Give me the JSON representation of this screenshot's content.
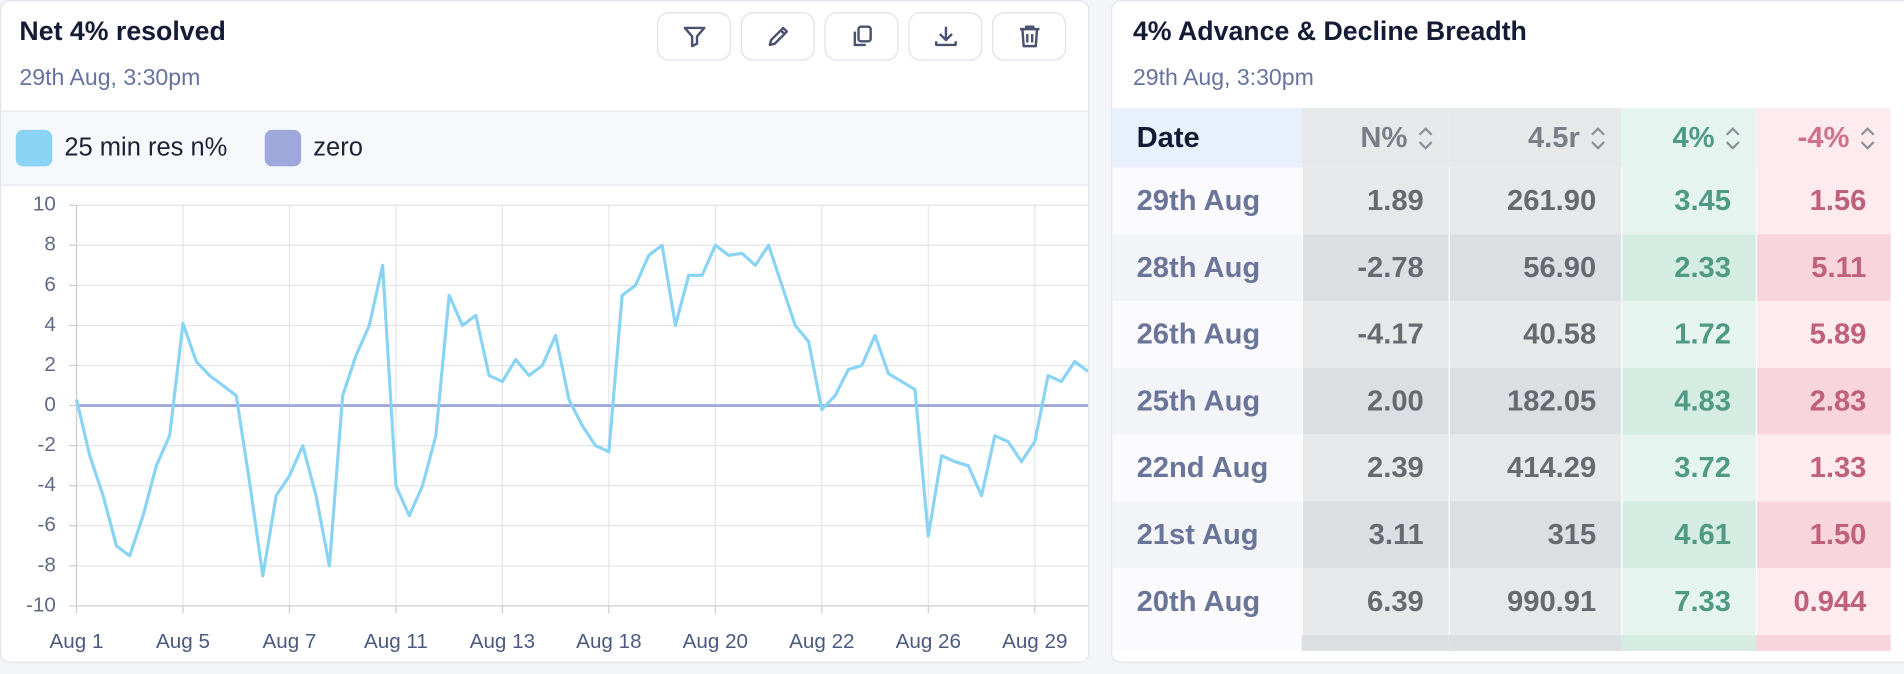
{
  "chart_data": {
    "type": "line",
    "title": "Net 4% resolved",
    "subtitle": "29th Aug, 3:30pm",
    "categories": [
      "Aug 1",
      null,
      null,
      null,
      null,
      null,
      null,
      null,
      "Aug 5",
      null,
      null,
      null,
      null,
      null,
      null,
      null,
      "Aug 7",
      null,
      null,
      null,
      null,
      null,
      null,
      null,
      "Aug 11",
      null,
      null,
      null,
      null,
      null,
      null,
      null,
      "Aug 13",
      null,
      null,
      null,
      null,
      null,
      null,
      null,
      "Aug 18",
      null,
      null,
      null,
      null,
      null,
      null,
      null,
      "Aug 20",
      null,
      null,
      null,
      null,
      null,
      null,
      null,
      "Aug 22",
      null,
      null,
      null,
      null,
      null,
      null,
      null,
      "Aug 26",
      null,
      null,
      null,
      null,
      null,
      null,
      null,
      "Aug 29",
      null,
      null,
      null,
      null
    ],
    "series": [
      {
        "name": "25 min res n%",
        "color": "#89d4f5",
        "values": [
          0.3,
          -2.5,
          -4.5,
          -7,
          -7.5,
          -5.5,
          -3,
          -1.5,
          4.1,
          2.2,
          1.5,
          1,
          0.5,
          -3.8,
          -8.5,
          -4.5,
          -3.5,
          -2,
          -4.5,
          -8,
          0.5,
          2.5,
          4,
          7,
          -4,
          -5.5,
          -4,
          -1.5,
          5.5,
          4,
          4.5,
          1.5,
          1.2,
          2.3,
          1.5,
          2,
          3.5,
          0.3,
          -1,
          -2,
          -2.3,
          5.5,
          6,
          7.5,
          8,
          4,
          6.5,
          6.5,
          8,
          7.5,
          7.6,
          7,
          8,
          6,
          4,
          3.2,
          -0.2,
          0.5,
          1.8,
          2,
          3.5,
          1.6,
          1.2,
          0.8,
          -6.5,
          -2.5,
          -2.8,
          -3,
          -4.5,
          -1.5,
          -1.8,
          -2.8,
          -1.8,
          1.5,
          1.2,
          2.2,
          1.7
        ]
      },
      {
        "name": "zero",
        "color": "#9fa8da",
        "values": [
          0,
          0,
          0,
          0,
          0,
          0,
          0,
          0,
          0,
          0,
          0,
          0,
          0,
          0,
          0,
          0,
          0,
          0,
          0,
          0,
          0,
          0,
          0,
          0,
          0,
          0,
          0,
          0,
          0,
          0,
          0,
          0,
          0,
          0,
          0,
          0,
          0,
          0,
          0,
          0,
          0,
          0,
          0,
          0,
          0,
          0,
          0,
          0,
          0,
          0,
          0,
          0,
          0,
          0,
          0,
          0,
          0,
          0,
          0,
          0,
          0,
          0,
          0,
          0,
          0,
          0,
          0,
          0,
          0,
          0,
          0,
          0,
          0,
          0,
          0,
          0,
          0
        ]
      }
    ],
    "ylim": [
      -10,
      10
    ],
    "yticks": [
      -10,
      -8,
      -6,
      -4,
      -2,
      0,
      2,
      4,
      6,
      8,
      10
    ],
    "grid": true
  },
  "table_panel": {
    "title": "4% Advance & Decline Breadth",
    "subtitle": "29th Aug, 3:30pm",
    "headers": [
      "Date",
      "N%",
      "4.5r",
      "4%",
      "-4%"
    ],
    "rows": [
      [
        "29th Aug",
        "1.89",
        "261.90",
        "3.45",
        "1.56"
      ],
      [
        "28th Aug",
        "-2.78",
        "56.90",
        "2.33",
        "5.11"
      ],
      [
        "26th Aug",
        "-4.17",
        "40.58",
        "1.72",
        "5.89"
      ],
      [
        "25th Aug",
        "2.00",
        "182.05",
        "4.83",
        "2.83"
      ],
      [
        "22nd Aug",
        "2.39",
        "414.29",
        "3.72",
        "1.33"
      ],
      [
        "21st Aug",
        "3.11",
        "315",
        "4.61",
        "1.50"
      ],
      [
        "20th Aug",
        "6.39",
        "990.91",
        "7.33",
        "0.944"
      ]
    ]
  }
}
